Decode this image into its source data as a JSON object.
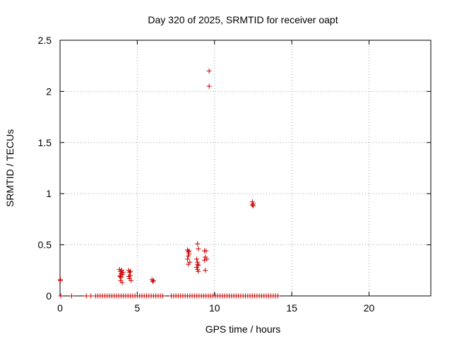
{
  "chart_data": {
    "type": "scatter",
    "title": "Day 320 of 2025, SRMTID for receiver oapt",
    "xlabel": "GPS time / hours",
    "ylabel": "SRMTID / TECUs",
    "xlim": [
      0,
      24
    ],
    "ylim": [
      0,
      2.5
    ],
    "grid": true,
    "marker": "+",
    "marker_color": "#cc0000",
    "x_ticks": [
      {
        "value": 0,
        "label": "0"
      },
      {
        "value": 5,
        "label": "5"
      },
      {
        "value": 10,
        "label": "10"
      },
      {
        "value": 15,
        "label": "15"
      },
      {
        "value": 20,
        "label": "20"
      }
    ],
    "y_ticks": [
      {
        "value": 0,
        "label": "0"
      },
      {
        "value": 0.5,
        "label": "0.5"
      },
      {
        "value": 1,
        "label": "1"
      },
      {
        "value": 1.5,
        "label": "1.5"
      },
      {
        "value": 2,
        "label": "2"
      },
      {
        "value": 2.5,
        "label": "2.5"
      }
    ],
    "series": [
      {
        "name": "SRMTID",
        "points": [
          [
            0.02,
            0.16
          ],
          [
            0.02,
            0.15
          ],
          [
            0.05,
            0.0
          ],
          [
            0.75,
            0.0
          ],
          [
            1.7,
            0.0
          ],
          [
            2.0,
            0.0
          ],
          [
            2.3,
            0.0
          ],
          [
            2.45,
            0.0
          ],
          [
            2.6,
            0.0
          ],
          [
            2.75,
            0.0
          ],
          [
            2.9,
            0.0
          ],
          [
            3.05,
            0.0
          ],
          [
            3.2,
            0.0
          ],
          [
            3.35,
            0.0
          ],
          [
            3.5,
            0.0
          ],
          [
            3.65,
            0.0
          ],
          [
            3.8,
            0.0
          ],
          [
            3.95,
            0.0
          ],
          [
            4.1,
            0.0
          ],
          [
            4.25,
            0.0
          ],
          [
            4.4,
            0.0
          ],
          [
            4.55,
            0.0
          ],
          [
            4.7,
            0.0
          ],
          [
            4.85,
            0.0
          ],
          [
            5.0,
            0.0
          ],
          [
            5.15,
            0.0
          ],
          [
            5.3,
            0.0
          ],
          [
            5.45,
            0.0
          ],
          [
            5.6,
            0.0
          ],
          [
            5.75,
            0.0
          ],
          [
            5.9,
            0.0
          ],
          [
            6.05,
            0.0
          ],
          [
            6.2,
            0.0
          ],
          [
            6.35,
            0.0
          ],
          [
            6.5,
            0.0
          ],
          [
            6.65,
            0.0
          ],
          [
            7.2,
            0.0
          ],
          [
            7.35,
            0.0
          ],
          [
            7.5,
            0.0
          ],
          [
            7.65,
            0.0
          ],
          [
            7.8,
            0.0
          ],
          [
            7.95,
            0.0
          ],
          [
            8.1,
            0.0
          ],
          [
            8.25,
            0.0
          ],
          [
            8.4,
            0.0
          ],
          [
            8.55,
            0.0
          ],
          [
            8.7,
            0.0
          ],
          [
            8.85,
            0.0
          ],
          [
            9.0,
            0.0
          ],
          [
            9.15,
            0.0
          ],
          [
            9.3,
            0.0
          ],
          [
            9.45,
            0.0
          ],
          [
            9.6,
            0.0
          ],
          [
            9.75,
            0.0
          ],
          [
            9.9,
            0.0
          ],
          [
            10.05,
            0.0
          ],
          [
            10.2,
            0.0
          ],
          [
            10.35,
            0.0
          ],
          [
            10.5,
            0.0
          ],
          [
            10.65,
            0.0
          ],
          [
            10.8,
            0.0
          ],
          [
            10.95,
            0.0
          ],
          [
            11.1,
            0.0
          ],
          [
            11.25,
            0.0
          ],
          [
            11.4,
            0.0
          ],
          [
            11.55,
            0.0
          ],
          [
            11.7,
            0.0
          ],
          [
            11.85,
            0.0
          ],
          [
            12.0,
            0.0
          ],
          [
            12.15,
            0.0
          ],
          [
            12.3,
            0.0
          ],
          [
            12.45,
            0.0
          ],
          [
            12.6,
            0.0
          ],
          [
            12.75,
            0.0
          ],
          [
            12.9,
            0.0
          ],
          [
            13.05,
            0.0
          ],
          [
            13.2,
            0.0
          ],
          [
            13.35,
            0.0
          ],
          [
            13.5,
            0.0
          ],
          [
            13.65,
            0.0
          ],
          [
            13.8,
            0.0
          ],
          [
            13.95,
            0.0
          ],
          [
            14.1,
            0.0
          ],
          [
            3.85,
            0.26
          ],
          [
            3.9,
            0.24
          ],
          [
            3.95,
            0.22
          ],
          [
            3.9,
            0.2
          ],
          [
            3.95,
            0.18
          ],
          [
            4.0,
            0.25
          ],
          [
            4.05,
            0.21
          ],
          [
            3.92,
            0.15
          ],
          [
            4.02,
            0.13
          ],
          [
            3.88,
            0.19
          ],
          [
            4.08,
            0.23
          ],
          [
            4.45,
            0.25
          ],
          [
            4.5,
            0.23
          ],
          [
            4.55,
            0.2
          ],
          [
            4.5,
            0.17
          ],
          [
            4.6,
            0.15
          ],
          [
            4.45,
            0.19
          ],
          [
            4.55,
            0.24
          ],
          [
            5.95,
            0.16
          ],
          [
            6.05,
            0.15
          ],
          [
            6.0,
            0.14
          ],
          [
            8.25,
            0.45
          ],
          [
            8.3,
            0.43
          ],
          [
            8.35,
            0.41
          ],
          [
            8.3,
            0.39
          ],
          [
            8.25,
            0.36
          ],
          [
            8.4,
            0.33
          ],
          [
            8.35,
            0.44
          ],
          [
            8.3,
            0.31
          ],
          [
            8.9,
            0.51
          ],
          [
            8.95,
            0.46
          ],
          [
            8.85,
            0.36
          ],
          [
            8.9,
            0.33
          ],
          [
            8.95,
            0.3
          ],
          [
            8.85,
            0.28
          ],
          [
            8.9,
            0.26
          ],
          [
            8.95,
            0.24
          ],
          [
            8.9,
            0.31
          ],
          [
            9.35,
            0.44
          ],
          [
            9.45,
            0.44
          ],
          [
            9.4,
            0.38
          ],
          [
            9.5,
            0.36
          ],
          [
            9.35,
            0.35
          ],
          [
            9.4,
            0.25
          ],
          [
            9.65,
            2.2
          ],
          [
            9.65,
            2.05
          ],
          [
            12.45,
            0.92
          ],
          [
            12.5,
            0.9
          ],
          [
            12.45,
            0.89
          ],
          [
            12.5,
            0.88
          ]
        ]
      }
    ]
  }
}
